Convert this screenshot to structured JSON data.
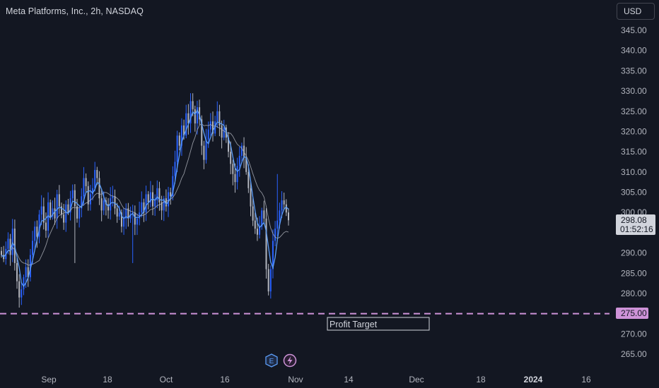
{
  "symbol": {
    "title": "Meta Platforms, Inc., 2h, NASDAQ"
  },
  "currency_label": "USD",
  "price_label": {
    "price": "298.08",
    "countdown": "01:52:16"
  },
  "profit_target": {
    "label": "Profit Target",
    "price_label": "275.00",
    "price": 275,
    "color": "#ce93d8"
  },
  "event_markers": [
    {
      "letter": "E",
      "icon": "earnings-icon",
      "color": "#5b9cf6"
    },
    {
      "icon": "lightning-icon",
      "color": "#ce93d8"
    }
  ],
  "chart_data": {
    "type": "candlestick",
    "title": "Meta Platforms, Inc., 2h, NASDAQ",
    "yaxis": {
      "range": [
        260,
        350
      ],
      "ticks": [
        "345.00",
        "340.00",
        "335.00",
        "330.00",
        "325.00",
        "320.00",
        "315.00",
        "310.00",
        "305.00",
        "300.00",
        "290.00",
        "285.00",
        "280.00",
        "270.00",
        "265.00"
      ]
    },
    "xaxis": {
      "ticks": [
        {
          "label": "Sep",
          "bold": false
        },
        {
          "label": "18",
          "bold": false
        },
        {
          "label": "Oct",
          "bold": false
        },
        {
          "label": "16",
          "bold": false
        },
        {
          "label": "Nov",
          "bold": false
        },
        {
          "label": "14",
          "bold": false
        },
        {
          "label": "Dec",
          "bold": false
        },
        {
          "label": "18",
          "bold": false
        },
        {
          "label": "2024",
          "bold": true
        },
        {
          "label": "16",
          "bold": false
        }
      ]
    },
    "colors": {
      "up": "#2962ff",
      "down": "#b2b5be",
      "ma_fast": "#5b9cf6",
      "ma_slow": "#b2b5be"
    },
    "closes": [
      289.5,
      288.5,
      291.0,
      293.5,
      289.5,
      296.0,
      287.5,
      283.0,
      279.0,
      281.0,
      284.0,
      286.5,
      284.0,
      289.5,
      293.0,
      296.5,
      294.0,
      299.5,
      301.5,
      297.5,
      295.5,
      302.5,
      299.0,
      301.0,
      298.5,
      304.5,
      301.5,
      299.5,
      297.5,
      302.0,
      300.0,
      303.5,
      305.5,
      301.5,
      298.5,
      301.0,
      304.0,
      308.5,
      306.5,
      302.0,
      304.5,
      306.0,
      310.5,
      308.5,
      303.5,
      300.5,
      303.0,
      302.0,
      300.5,
      303.5,
      304.0,
      301.0,
      299.0,
      300.0,
      296.5,
      298.5,
      301.0,
      298.5,
      299.5,
      300.0,
      297.0,
      298.5,
      300.0,
      302.5,
      300.0,
      304.5,
      302.5,
      305.0,
      301.5,
      303.0,
      306.0,
      302.5,
      300.5,
      303.5,
      301.5,
      305.0,
      304.0,
      309.0,
      312.5,
      319.0,
      316.5,
      321.5,
      319.0,
      324.5,
      322.0,
      327.5,
      325.5,
      322.0,
      326.0,
      323.0,
      316.5,
      313.0,
      318.0,
      320.5,
      322.5,
      319.5,
      322.5,
      325.0,
      321.5,
      318.5,
      321.0,
      318.5,
      315.0,
      312.0,
      309.5,
      307.5,
      311.5,
      314.0,
      316.5,
      313.5,
      310.0,
      306.0,
      301.5,
      298.0,
      296.0,
      294.5,
      296.5,
      300.5,
      298.5,
      286.0,
      280.5,
      286.0,
      293.0,
      296.0,
      298.0,
      300.5,
      303.0,
      302.0,
      300.0,
      298.08
    ]
  }
}
